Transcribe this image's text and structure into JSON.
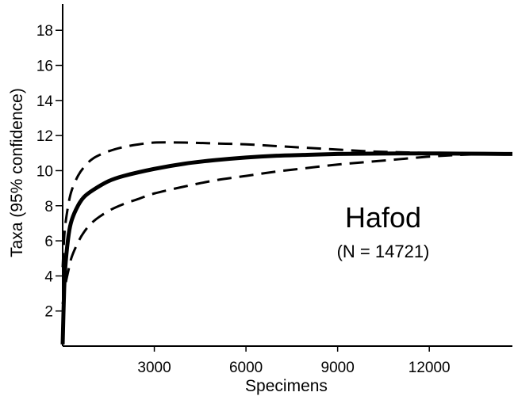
{
  "chart_data": {
    "type": "line",
    "xlabel": "Specimens",
    "ylabel": "Taxa (95% confidence)",
    "xlim": [
      0,
      14721
    ],
    "ylim": [
      0,
      19.5
    ],
    "x_ticks": [
      3000,
      6000,
      9000,
      12000
    ],
    "y_ticks": [
      2,
      4,
      6,
      8,
      10,
      12,
      14,
      16,
      18
    ],
    "grid": false,
    "legend": "none",
    "annotations": [
      {
        "text": "Hafod"
      },
      {
        "text": "(N = 14721)"
      }
    ],
    "series": [
      {
        "style": "solid",
        "x": [
          0,
          50,
          100,
          200,
          300,
          500,
          700,
          1000,
          1500,
          2000,
          3000,
          4000,
          5000,
          6000,
          7000,
          8000,
          9000,
          10000,
          11000,
          12000,
          13000,
          14721
        ],
        "y": [
          0.1,
          3.3,
          4.8,
          6.4,
          7.2,
          8.0,
          8.5,
          8.9,
          9.4,
          9.7,
          10.1,
          10.4,
          10.6,
          10.75,
          10.85,
          10.9,
          10.95,
          10.97,
          10.98,
          10.98,
          10.97,
          10.95
        ]
      },
      {
        "style": "dashed",
        "x": [
          0,
          50,
          100,
          200,
          300,
          500,
          700,
          1000,
          1500,
          2000,
          2500,
          3000,
          4000,
          5000,
          6000,
          7000,
          8000,
          9000,
          10000,
          11000,
          12000,
          13000,
          14000
        ],
        "y": [
          4.5,
          6.2,
          7.1,
          8.2,
          8.9,
          9.7,
          10.2,
          10.7,
          11.1,
          11.35,
          11.5,
          11.6,
          11.6,
          11.55,
          11.5,
          11.4,
          11.3,
          11.2,
          11.1,
          11.05,
          11.0,
          10.97,
          10.95
        ]
      },
      {
        "style": "dashed",
        "x": [
          0,
          50,
          100,
          200,
          300,
          500,
          700,
          1000,
          1500,
          2000,
          2500,
          3000,
          4000,
          5000,
          6000,
          7000,
          8000,
          9000,
          10000,
          11000,
          12000,
          13000,
          14000
        ],
        "y": [
          2.4,
          3.0,
          3.6,
          4.4,
          5.1,
          5.9,
          6.5,
          7.1,
          7.7,
          8.1,
          8.4,
          8.7,
          9.1,
          9.45,
          9.7,
          9.95,
          10.15,
          10.35,
          10.5,
          10.65,
          10.8,
          10.9,
          10.95
        ]
      }
    ]
  }
}
